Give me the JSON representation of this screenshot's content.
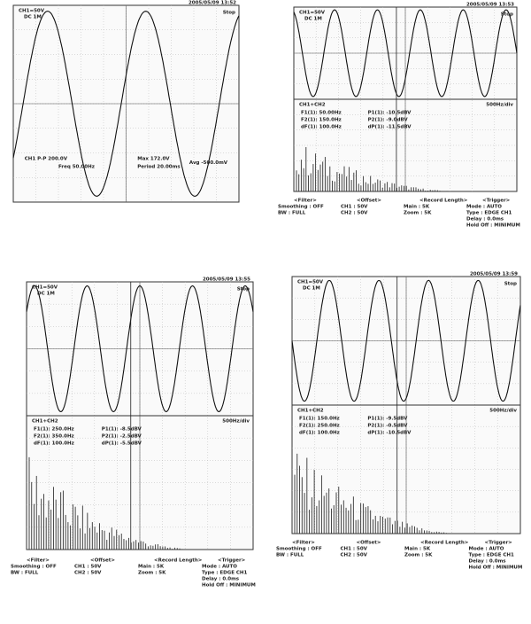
{
  "panels": [
    {
      "timestamp": "2005/05/09 13:52",
      "channel": "CH1=50V",
      "coupling": "DC 1M",
      "status": "Stop",
      "readouts": [
        "CH1 P-P 200.0V",
        "Freq 50.00Hz",
        "Max 172.0V",
        "Period 20.00ms",
        "Avg -500.0mV"
      ]
    },
    {
      "timestamp": "2005/05/09 13:53",
      "channel": "CH1=50V",
      "coupling": "DC 1M",
      "status": "Stop",
      "math": "CH1+CH2",
      "scale": "500Hz/div",
      "readouts": [
        "F1(1): 50.00Hz",
        "P1(1): -10.5dBV",
        "F2(1): 150.0Hz",
        "P2(1): -9.0dBV",
        "dF(1): 100.0Hz",
        "dP(1): -11.5dBV"
      ],
      "menu": [
        [
          "<Filter>",
          "Smoothing : OFF",
          "BW : FULL"
        ],
        [
          "<Offset>",
          "CH1 : 50V",
          "CH2 : 50V"
        ],
        [
          "<Record Length>",
          "Main : 5K",
          "Zoom : 5K"
        ],
        [
          "<Trigger>",
          "Mode : AUTO",
          "Type : EDGE CH1",
          "Delay : 0.0ms",
          "Hold Off : MINIMUM"
        ]
      ]
    },
    {
      "timestamp": "2005/05/09 13:55",
      "channel": "CH1=50V",
      "coupling": "DC 1M",
      "status": "Stop",
      "math": "CH1+CH2",
      "scale": "500Hz/div",
      "readouts": [
        "F1(1): 250.0Hz",
        "P1(1): -8.5dBV",
        "F2(1): 350.0Hz",
        "P2(1): -2.5dBV",
        "dF(1): 100.0Hz",
        "dP(1): -5.5dBV"
      ],
      "menu": [
        [
          "<Filter>",
          "Smoothing : OFF",
          "BW : FULL"
        ],
        [
          "<Offset>",
          "CH1 : 50V",
          "CH2 : 50V"
        ],
        [
          "<Record Length>",
          "Main : 5K",
          "Zoom : 5K"
        ],
        [
          "<Trigger>",
          "Mode : AUTO",
          "Type : EDGE CH1",
          "Delay : 0.0ms",
          "Hold Off : MINIMUM"
        ]
      ]
    },
    {
      "timestamp": "2005/05/09 13:59",
      "channel": "CH1=50V",
      "coupling": "DC 1M",
      "status": "Stop",
      "math": "CH1+CH2",
      "scale": "500Hz/div",
      "readouts": [
        "F1(1): 150.0Hz",
        "P1(1): -9.5dBV",
        "F2(1): 250.0Hz",
        "P2(1): -0.5dBV",
        "dF(1): 100.0Hz",
        "dP(1): -10.5dBV"
      ],
      "menu": [
        [
          "<Filter>",
          "Smoothing : OFF",
          "BW : FULL"
        ],
        [
          "<Offset>",
          "CH1 : 50V",
          "CH2 : 50V"
        ],
        [
          "<Record Length>",
          "Main : 5K",
          "Zoom : 5K"
        ],
        [
          "<Trigger>",
          "Mode : AUTO",
          "Type : EDGE CH1",
          "Delay : 0.0ms",
          "Hold Off : MINIMUM"
        ]
      ]
    }
  ]
}
